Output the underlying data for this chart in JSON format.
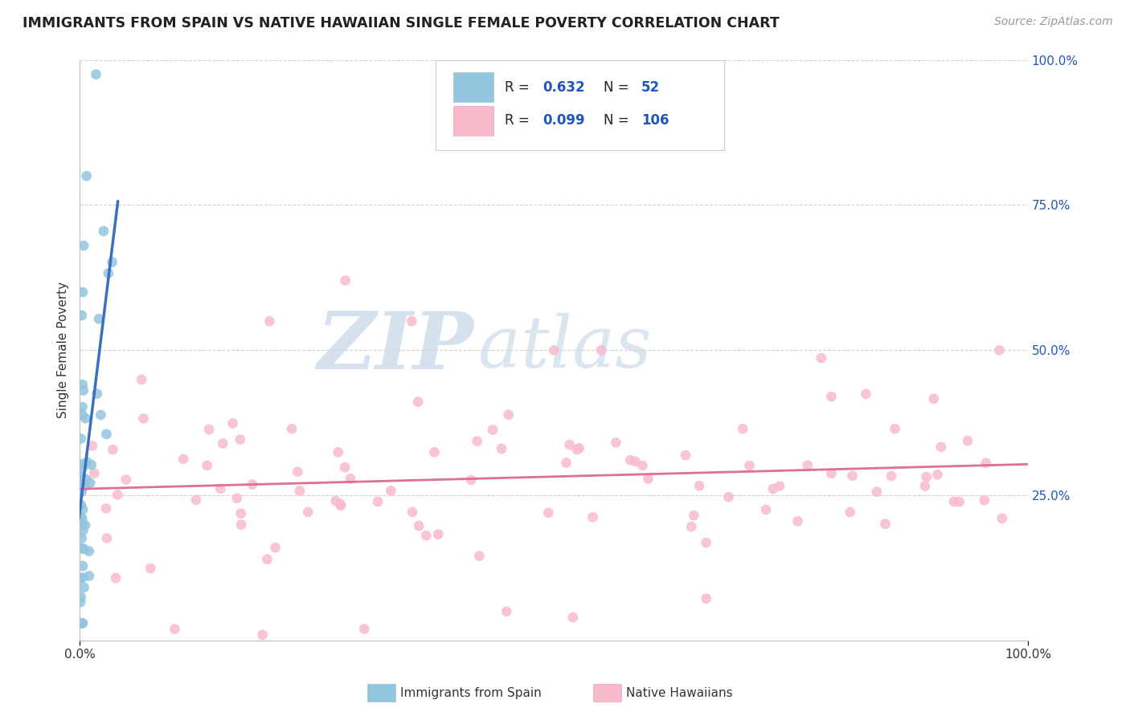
{
  "title": "IMMIGRANTS FROM SPAIN VS NATIVE HAWAIIAN SINGLE FEMALE POVERTY CORRELATION CHART",
  "source": "Source: ZipAtlas.com",
  "ylabel": "Single Female Poverty",
  "color_blue": "#92C5DE",
  "color_pink": "#F9BBCC",
  "color_line_blue": "#3A6FBF",
  "color_line_pink": "#E07090",
  "bottom_label_1": "Immigrants from Spain",
  "bottom_label_2": "Native Hawaiians",
  "watermark_zip": "ZIP",
  "watermark_atlas": "atlas",
  "grid_color": "#CCCCCC",
  "background_color": "#FFFFFF",
  "legend_color": "#2255BB",
  "right_axis_color": "#2255BB"
}
